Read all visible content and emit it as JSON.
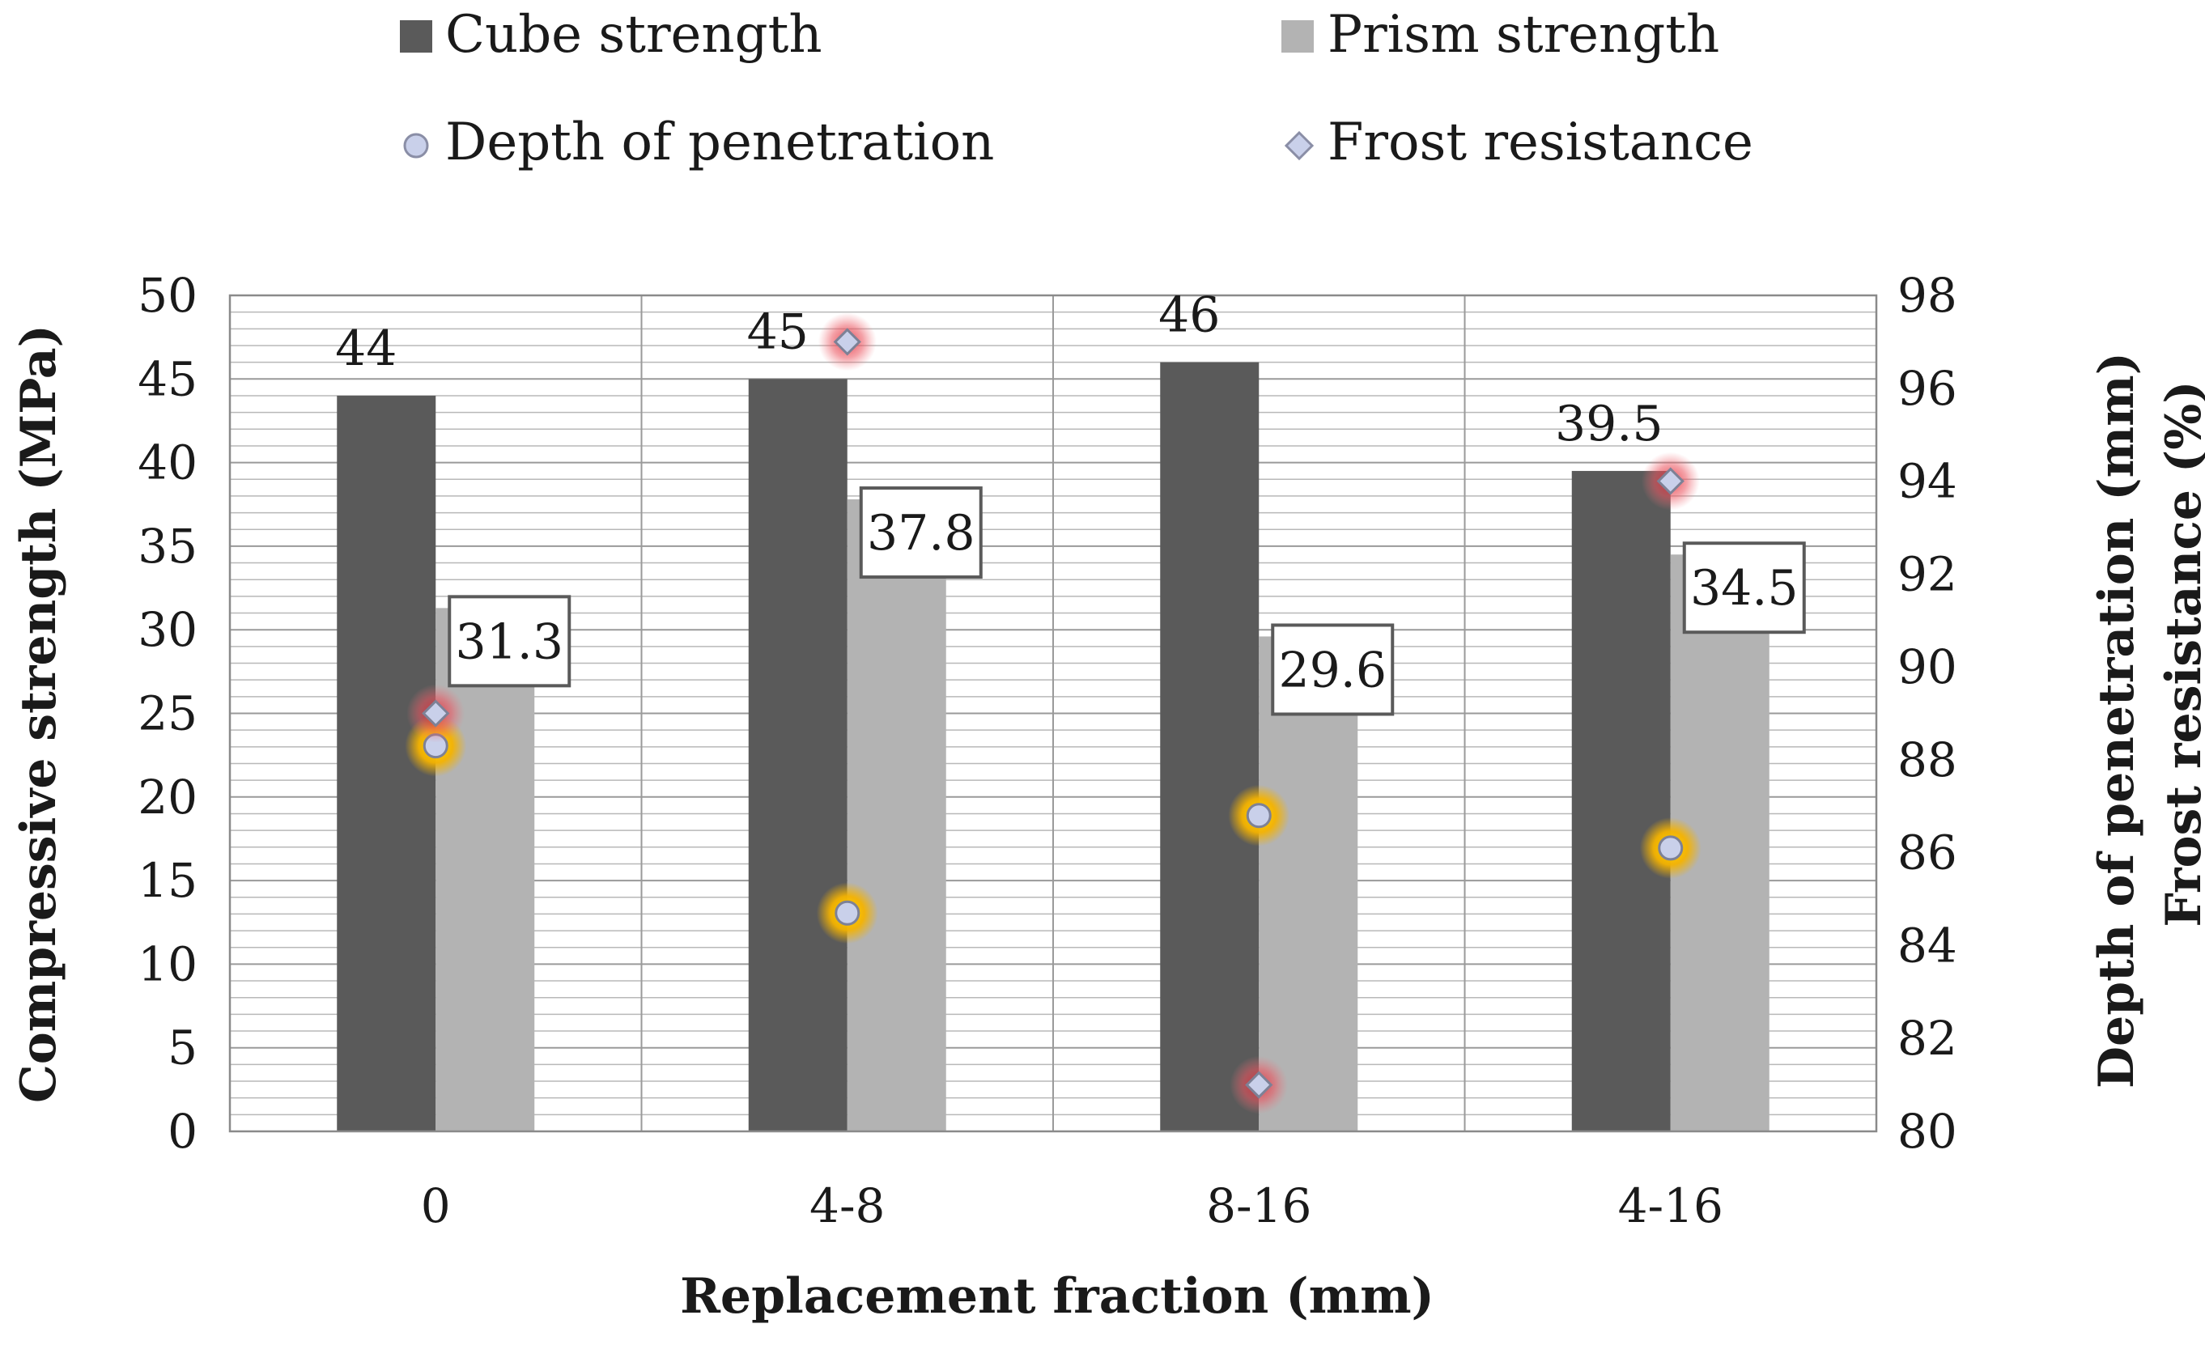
{
  "chart_data": {
    "type": "bar",
    "title": "",
    "xlabel": "Replacement fraction (mm)",
    "ylabel": "Compressive strength (MPa)",
    "y2label_line1": "Depth of penetration (mm)",
    "y2label_line2": "Frost resistance (%)",
    "categories": [
      "0",
      "4-8",
      "8-16",
      "4-16"
    ],
    "ylim": [
      0,
      50
    ],
    "yticks": [
      "0",
      "5",
      "10",
      "15",
      "20",
      "25",
      "30",
      "35",
      "40",
      "45",
      "50"
    ],
    "y2lim": [
      80,
      98
    ],
    "y2ticks": [
      "80",
      "82",
      "84",
      "86",
      "88",
      "90",
      "92",
      "94",
      "96",
      "98"
    ],
    "grid": true,
    "series": [
      {
        "name": "Cube strength",
        "kind": "bar",
        "axis": "left",
        "color": "#5a5a5a",
        "values": [
          44,
          45,
          46,
          39.5
        ],
        "value_labels": [
          "44",
          "45",
          "46",
          "39.5"
        ]
      },
      {
        "name": "Prism strength",
        "kind": "bar",
        "axis": "left",
        "color": "#b3b3b3",
        "values": [
          31.3,
          37.8,
          29.6,
          34.5
        ],
        "value_labels": [
          "31.3",
          "37.8",
          "29.6",
          "34.5"
        ]
      },
      {
        "name": "Depth of penetration",
        "kind": "scatter",
        "marker": "circle",
        "axis": "right",
        "color": "#c9d0ea",
        "glow": "#f5b800",
        "values": [
          88.3,
          84.7,
          86.8,
          86.1
        ]
      },
      {
        "name": "Frost resistance",
        "kind": "scatter",
        "marker": "diamond",
        "axis": "right",
        "color": "#c9d0ea",
        "glow": "#e0303a",
        "values": [
          89.0,
          97.0,
          81.0,
          94.0
        ]
      }
    ],
    "legend_position": "top"
  }
}
